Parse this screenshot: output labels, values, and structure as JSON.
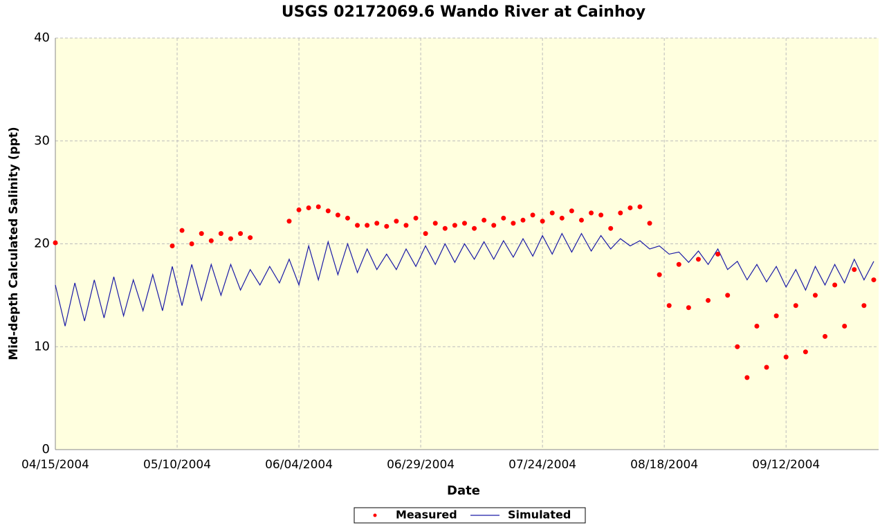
{
  "chart_data": {
    "type": "line_scatter",
    "title": "USGS 02172069.6 Wando River at Cainhoy",
    "x_label": "Date",
    "y_label": "Mid-depth Calculated Salinity (ppt)",
    "x": [
      "04/15/2004",
      "04/17/2004",
      "04/19/2004",
      "04/21/2004",
      "04/23/2004",
      "04/25/2004",
      "04/27/2004",
      "04/29/2004",
      "05/01/2004",
      "05/03/2004",
      "05/05/2004",
      "05/07/2004",
      "05/09/2004",
      "05/11/2004",
      "05/13/2004",
      "05/15/2004",
      "05/17/2004",
      "05/19/2004",
      "05/21/2004",
      "05/23/2004",
      "05/25/2004",
      "05/27/2004",
      "05/29/2004",
      "05/31/2004",
      "06/02/2004",
      "06/04/2004",
      "06/06/2004",
      "06/08/2004",
      "06/10/2004",
      "06/12/2004",
      "06/14/2004",
      "06/16/2004",
      "06/18/2004",
      "06/20/2004",
      "06/22/2004",
      "06/24/2004",
      "06/26/2004",
      "06/28/2004",
      "06/30/2004",
      "07/02/2004",
      "07/04/2004",
      "07/06/2004",
      "07/08/2004",
      "07/10/2004",
      "07/12/2004",
      "07/14/2004",
      "07/16/2004",
      "07/18/2004",
      "07/20/2004",
      "07/22/2004",
      "07/24/2004",
      "07/26/2004",
      "07/28/2004",
      "07/30/2004",
      "08/01/2004",
      "08/03/2004",
      "08/05/2004",
      "08/07/2004",
      "08/09/2004",
      "08/11/2004",
      "08/13/2004",
      "08/15/2004",
      "08/17/2004",
      "08/19/2004",
      "08/21/2004",
      "08/23/2004",
      "08/25/2004",
      "08/27/2004",
      "08/29/2004",
      "08/31/2004",
      "09/02/2004",
      "09/04/2004",
      "09/06/2004",
      "09/08/2004",
      "09/10/2004",
      "09/12/2004",
      "09/14/2004",
      "09/16/2004",
      "09/18/2004",
      "09/20/2004",
      "09/22/2004",
      "09/24/2004",
      "09/26/2004",
      "09/28/2004",
      "09/30/2004"
    ],
    "series": [
      {
        "name": "Measured",
        "kind": "scatter",
        "color": "#ff0000",
        "values": [
          20.1,
          null,
          null,
          null,
          null,
          null,
          null,
          null,
          null,
          null,
          null,
          null,
          19.8,
          21.3,
          20,
          21,
          20.3,
          21,
          20.5,
          21,
          20.6,
          null,
          null,
          null,
          22.2,
          23.3,
          23.5,
          23.6,
          23.2,
          22.8,
          22.5,
          21.8,
          21.8,
          22,
          21.7,
          22.2,
          21.8,
          22.5,
          21,
          22,
          21.5,
          21.8,
          22,
          21.5,
          22.3,
          21.8,
          22.5,
          22,
          22.3,
          22.8,
          22.2,
          23,
          22.5,
          23.2,
          22.3,
          23,
          22.8,
          21.5,
          23,
          23.5,
          23.6,
          22,
          17,
          14,
          18,
          13.8,
          18.5,
          14.5,
          19,
          15,
          10,
          7,
          12,
          8,
          13,
          9,
          14,
          9.5,
          15,
          11,
          16,
          12,
          17.5,
          14,
          16.5
        ]
      },
      {
        "name": "Simulated",
        "kind": "line",
        "color": "#1a1aa6",
        "values": [
          16,
          12,
          16.2,
          12.5,
          16.5,
          12.8,
          16.8,
          13,
          16.5,
          13.5,
          17,
          13.5,
          17.8,
          14,
          18,
          14.5,
          18,
          15,
          18,
          15.5,
          17.5,
          16,
          17.8,
          16.2,
          18.5,
          16,
          19.8,
          16.5,
          20.2,
          17,
          20,
          17.2,
          19.5,
          17.5,
          19,
          17.5,
          19.5,
          17.8,
          19.8,
          18,
          20,
          18.2,
          20,
          18.5,
          20.2,
          18.5,
          20.3,
          18.7,
          20.5,
          18.8,
          20.8,
          19,
          21,
          19.2,
          21,
          19.3,
          20.8,
          19.5,
          20.5,
          19.8,
          20.3,
          19.5,
          19.8,
          19,
          19.2,
          18.2,
          19.3,
          18,
          19.5,
          17.5,
          18.3,
          16.5,
          18,
          16.3,
          17.8,
          15.8,
          17.5,
          15.5,
          17.8,
          16,
          18,
          16.2,
          18.5,
          16.5,
          18.3
        ]
      }
    ],
    "xlim": [
      "04/15/2004",
      "10/01/2004"
    ],
    "xticks": [
      "04/15/2004",
      "05/10/2004",
      "06/04/2004",
      "06/29/2004",
      "07/24/2004",
      "08/18/2004",
      "09/12/2004"
    ],
    "ylim": [
      0,
      40
    ],
    "yticks": [
      0,
      10,
      20,
      30,
      40
    ],
    "grid": true,
    "legend": "bottom"
  }
}
